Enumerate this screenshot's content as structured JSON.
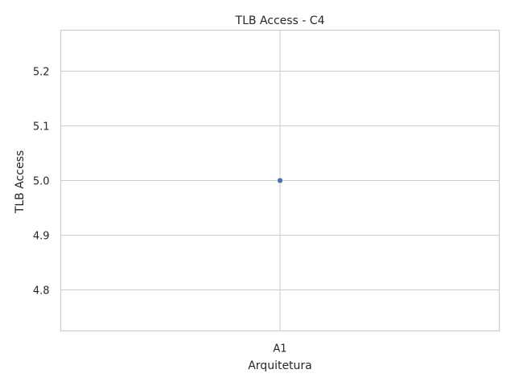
{
  "chart_data": {
    "type": "scatter",
    "title": "TLB Access - C4",
    "xlabel": "Arquitetura",
    "ylabel": "TLB Access",
    "categories": [
      "A1"
    ],
    "values": [
      5.0
    ],
    "ylim": [
      4.725,
      5.275
    ],
    "yticks": [
      "4.8",
      "4.9",
      "5.0",
      "5.1",
      "5.2"
    ],
    "grid": true,
    "point_color": "#4c72b0"
  }
}
